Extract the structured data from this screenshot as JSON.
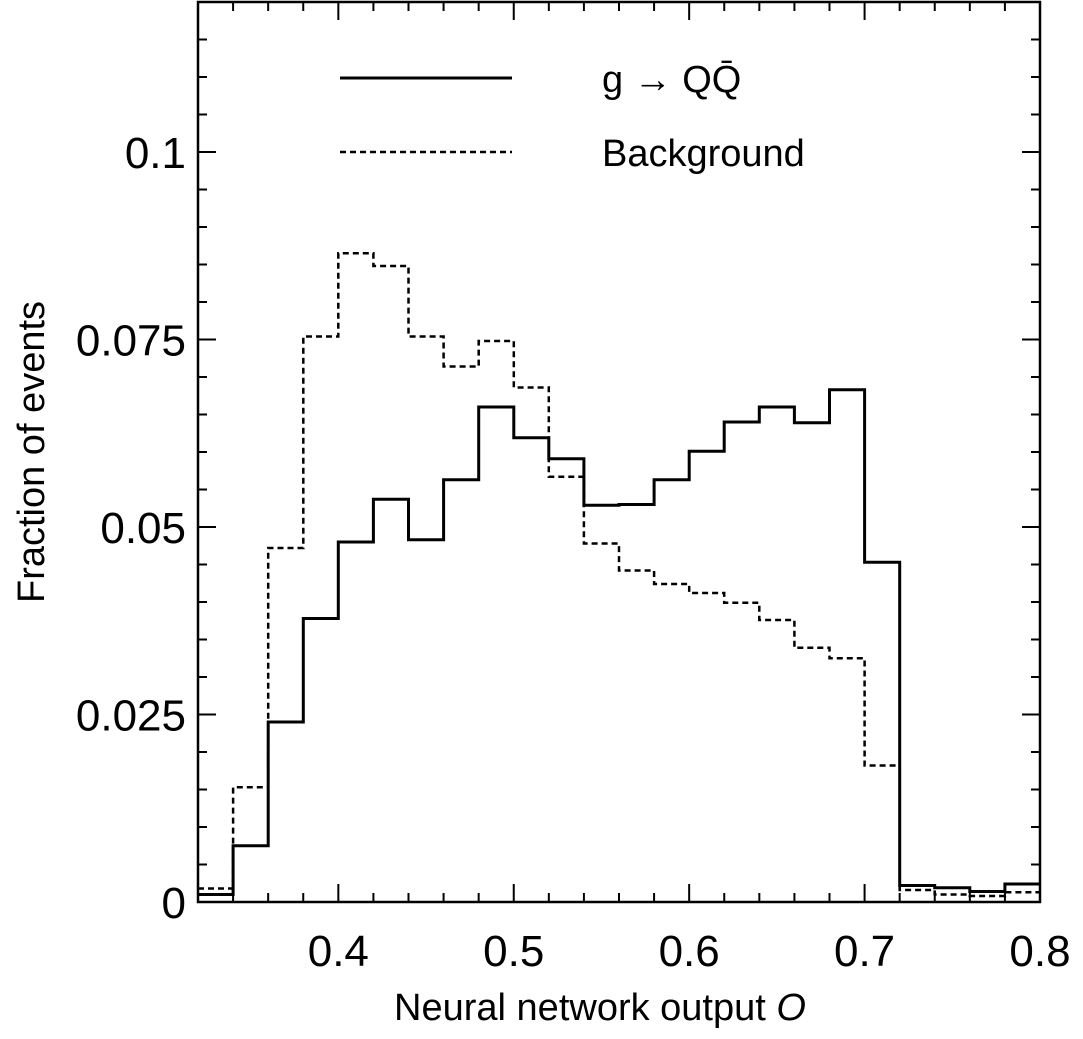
{
  "chart_data": {
    "type": "histogram",
    "xlabel": "Neural network output",
    "xlabel_symbol": "O",
    "ylabel": "Fraction of events",
    "xlim": [
      0.32,
      0.8
    ],
    "ylim": [
      0,
      0.12
    ],
    "x_ticks": [
      "0.4",
      "0.5",
      "0.6",
      "0.7",
      "0.8"
    ],
    "y_ticks": [
      "0",
      "0.025",
      "0.05",
      "0.075",
      "0.1"
    ],
    "bin_edges": [
      0.32,
      0.34,
      0.36,
      0.38,
      0.4,
      0.42,
      0.44,
      0.46,
      0.48,
      0.5,
      0.52,
      0.54,
      0.56,
      0.58,
      0.6,
      0.62,
      0.64,
      0.66,
      0.68,
      0.7,
      0.72,
      0.74,
      0.76,
      0.78,
      0.8
    ],
    "legend_position": "top",
    "series": [
      {
        "name": "g → QQ̄",
        "style": "solid",
        "color": "#000000",
        "values": [
          0.001,
          0.0075,
          0.024,
          0.0378,
          0.048,
          0.0537,
          0.0483,
          0.0563,
          0.066,
          0.0619,
          0.0591,
          0.0529,
          0.053,
          0.0563,
          0.0601,
          0.064,
          0.066,
          0.0639,
          0.0683,
          0.0453,
          0.0022,
          0.0019,
          0.0014,
          0.0024
        ]
      },
      {
        "name": "Background",
        "style": "dashed",
        "color": "#000000",
        "values": [
          0.0018,
          0.0153,
          0.0472,
          0.0754,
          0.0865,
          0.0848,
          0.0754,
          0.0714,
          0.0748,
          0.0686,
          0.0567,
          0.0478,
          0.0442,
          0.0424,
          0.0412,
          0.0399,
          0.0376,
          0.0339,
          0.0325,
          0.0182,
          0.0016,
          0.001,
          0.0008,
          0.0013
        ]
      }
    ]
  }
}
